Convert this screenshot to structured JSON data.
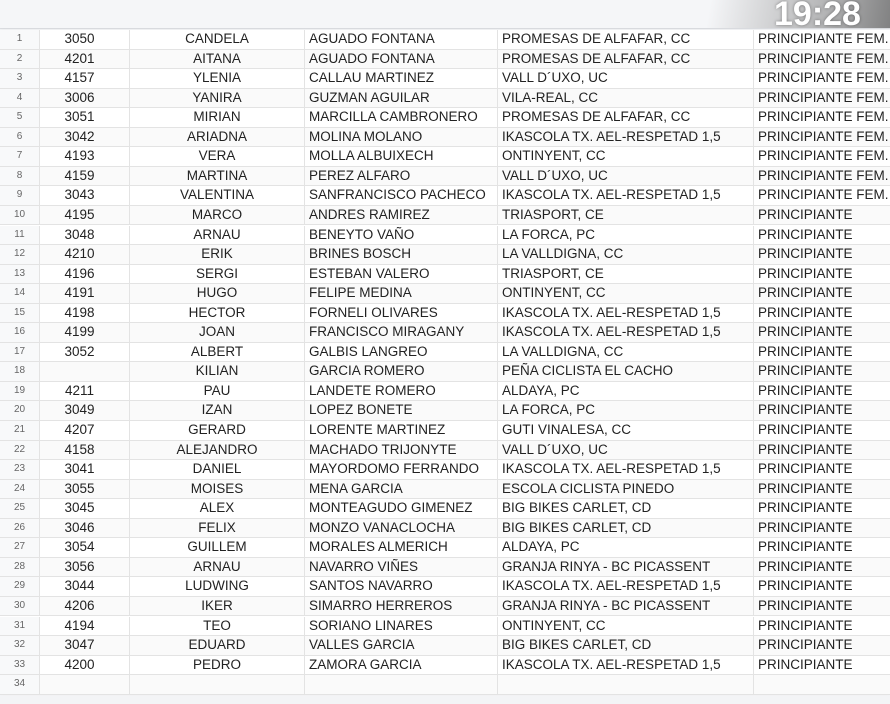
{
  "rows": [
    [
      "1",
      "3050",
      "CANDELA",
      "AGUADO FONTANA",
      "PROMESAS DE ALFAFAR, CC",
      "PRINCIPIANTE FEM."
    ],
    [
      "2",
      "4201",
      "AITANA",
      "AGUADO FONTANA",
      "PROMESAS DE ALFAFAR, CC",
      "PRINCIPIANTE FEM."
    ],
    [
      "3",
      "4157",
      "YLENIA",
      "CALLAU MARTINEZ",
      "VALL D´UXO, UC",
      "PRINCIPIANTE FEM."
    ],
    [
      "4",
      "3006",
      "YANIRA",
      "GUZMAN AGUILAR",
      "VILA-REAL, CC",
      "PRINCIPIANTE FEM."
    ],
    [
      "5",
      "3051",
      "MIRIAN",
      "MARCILLA CAMBRONERO",
      "PROMESAS DE ALFAFAR, CC",
      "PRINCIPIANTE FEM."
    ],
    [
      "6",
      "3042",
      "ARIADNA",
      "MOLINA MOLANO",
      "IKASCOLA TX. AEL-RESPETAD 1,5",
      "PRINCIPIANTE FEM."
    ],
    [
      "7",
      "4193",
      "VERA",
      "MOLLA ALBUIXECH",
      "ONTINYENT, CC",
      "PRINCIPIANTE FEM."
    ],
    [
      "8",
      "4159",
      "MARTINA",
      "PEREZ ALFARO",
      "VALL D´UXO, UC",
      "PRINCIPIANTE FEM."
    ],
    [
      "9",
      "3043",
      "VALENTINA",
      "SANFRANCISCO PACHECO",
      "IKASCOLA TX. AEL-RESPETAD 1,5",
      "PRINCIPIANTE FEM."
    ],
    [
      "10",
      "4195",
      "MARCO",
      "ANDRES RAMIREZ",
      "TRIASPORT, CE",
      "PRINCIPIANTE"
    ],
    [
      "11",
      "3048",
      "ARNAU",
      "BENEYTO VAÑO",
      "LA FORCA, PC",
      "PRINCIPIANTE"
    ],
    [
      "12",
      "4210",
      "ERIK",
      "BRINES BOSCH",
      "LA VALLDIGNA, CC",
      "PRINCIPIANTE"
    ],
    [
      "13",
      "4196",
      "SERGI",
      "ESTEBAN VALERO",
      "TRIASPORT, CE",
      "PRINCIPIANTE"
    ],
    [
      "14",
      "4191",
      "HUGO",
      "FELIPE MEDINA",
      "ONTINYENT, CC",
      "PRINCIPIANTE"
    ],
    [
      "15",
      "4198",
      "HECTOR",
      "FORNELI OLIVARES",
      "IKASCOLA TX. AEL-RESPETAD 1,5",
      "PRINCIPIANTE"
    ],
    [
      "16",
      "4199",
      "JOAN",
      "FRANCISCO MIRAGANY",
      "IKASCOLA TX. AEL-RESPETAD 1,5",
      "PRINCIPIANTE"
    ],
    [
      "17",
      "3052",
      "ALBERT",
      "GALBIS LANGREO",
      "LA VALLDIGNA, CC",
      "PRINCIPIANTE"
    ],
    [
      "18",
      "",
      "KILIAN",
      "GARCIA ROMERO",
      "PEÑA CICLISTA EL CACHO",
      "PRINCIPIANTE"
    ],
    [
      "19",
      "4211",
      "PAU",
      "LANDETE ROMERO",
      "ALDAYA, PC",
      "PRINCIPIANTE"
    ],
    [
      "20",
      "3049",
      "IZAN",
      "LOPEZ BONETE",
      "LA FORCA, PC",
      "PRINCIPIANTE"
    ],
    [
      "21",
      "4207",
      "GERARD",
      "LORENTE MARTINEZ",
      "GUTI VINALESA, CC",
      "PRINCIPIANTE"
    ],
    [
      "22",
      "4158",
      "ALEJANDRO",
      "MACHADO TRIJONYTE",
      "VALL D´UXO, UC",
      "PRINCIPIANTE"
    ],
    [
      "23",
      "3041",
      "DANIEL",
      "MAYORDOMO FERRANDO",
      "IKASCOLA TX. AEL-RESPETAD 1,5",
      "PRINCIPIANTE"
    ],
    [
      "24",
      "3055",
      "MOISES",
      "MENA GARCIA",
      "ESCOLA CICLISTA PINEDO",
      "PRINCIPIANTE"
    ],
    [
      "25",
      "3045",
      "ALEX",
      "MONTEAGUDO GIMENEZ",
      "BIG BIKES CARLET, CD",
      "PRINCIPIANTE"
    ],
    [
      "26",
      "3046",
      "FELIX",
      "MONZO VANACLOCHA",
      "BIG BIKES CARLET, CD",
      "PRINCIPIANTE"
    ],
    [
      "27",
      "3054",
      "GUILLEM",
      "MORALES ALMERICH",
      "ALDAYA, PC",
      "PRINCIPIANTE"
    ],
    [
      "28",
      "3056",
      "ARNAU",
      "NAVARRO VIÑES",
      "GRANJA RINYA - BC PICASSENT",
      "PRINCIPIANTE"
    ],
    [
      "29",
      "3044",
      "LUDWING",
      "SANTOS NAVARRO",
      "IKASCOLA TX. AEL-RESPETAD 1,5",
      "PRINCIPIANTE"
    ],
    [
      "30",
      "4206",
      "IKER",
      "SIMARRO HERREROS",
      "GRANJA RINYA - BC PICASSENT",
      "PRINCIPIANTE"
    ],
    [
      "31",
      "4194",
      "TEO",
      "SORIANO LINARES",
      "ONTINYENT, CC",
      "PRINCIPIANTE"
    ],
    [
      "32",
      "3047",
      "EDUARD",
      "VALLES GARCIA",
      "BIG BIKES CARLET, CD",
      "PRINCIPIANTE"
    ],
    [
      "33",
      "4200",
      "PEDRO",
      "ZAMORA GARCIA",
      "IKASCOLA TX. AEL-RESPETAD 1,5",
      "PRINCIPIANTE"
    ],
    [
      "34",
      "",
      "",
      "",
      "",
      ""
    ]
  ],
  "overlay_time": "19:28"
}
